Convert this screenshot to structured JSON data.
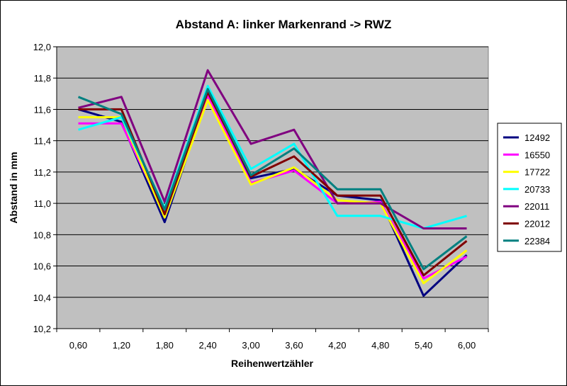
{
  "chart_data": {
    "type": "line",
    "title": "Abstand A: linker Markenrand -> RWZ",
    "xlabel": "Reihenwertzähler",
    "ylabel": "Abstand in mm",
    "categories": [
      "0,60",
      "1,20",
      "1,80",
      "2,40",
      "3,00",
      "3,60",
      "4,20",
      "4,80",
      "5,40",
      "6,00"
    ],
    "ylim": [
      10.2,
      12.0
    ],
    "ytick_step": 0.2,
    "ytick_labels": [
      "10,2",
      "10,4",
      "10,6",
      "10,8",
      "11,0",
      "11,2",
      "11,4",
      "11,6",
      "11,8",
      "12,0"
    ],
    "grid": true,
    "plot_background": "#c0c0c0",
    "legend_position": "right",
    "series": [
      {
        "name": "12492",
        "color": "#000080",
        "values": [
          11.6,
          11.52,
          10.88,
          11.69,
          11.16,
          11.22,
          11.05,
          11.02,
          10.41,
          10.67
        ]
      },
      {
        "name": "16550",
        "color": "#ff00ff",
        "values": [
          11.51,
          11.51,
          10.93,
          11.69,
          11.13,
          11.21,
          11.0,
          11.01,
          10.52,
          10.66
        ]
      },
      {
        "name": "17722",
        "color": "#ffff00",
        "values": [
          11.55,
          11.55,
          10.91,
          11.66,
          11.12,
          11.23,
          11.02,
          11.0,
          10.49,
          10.7
        ]
      },
      {
        "name": "20733",
        "color": "#00ffff",
        "values": [
          11.47,
          11.55,
          10.97,
          11.75,
          11.22,
          11.38,
          10.92,
          10.92,
          10.84,
          10.92
        ]
      },
      {
        "name": "22011",
        "color": "#800080",
        "values": [
          11.61,
          11.68,
          11.01,
          11.85,
          11.38,
          11.47,
          11.0,
          11.0,
          10.84,
          10.84
        ]
      },
      {
        "name": "22012",
        "color": "#800000",
        "values": [
          11.6,
          11.6,
          10.93,
          11.71,
          11.17,
          11.3,
          11.05,
          11.05,
          10.54,
          10.76
        ]
      },
      {
        "name": "22384",
        "color": "#008080",
        "values": [
          11.68,
          11.57,
          10.96,
          11.73,
          11.18,
          11.35,
          11.09,
          11.09,
          10.58,
          10.79
        ]
      }
    ]
  }
}
